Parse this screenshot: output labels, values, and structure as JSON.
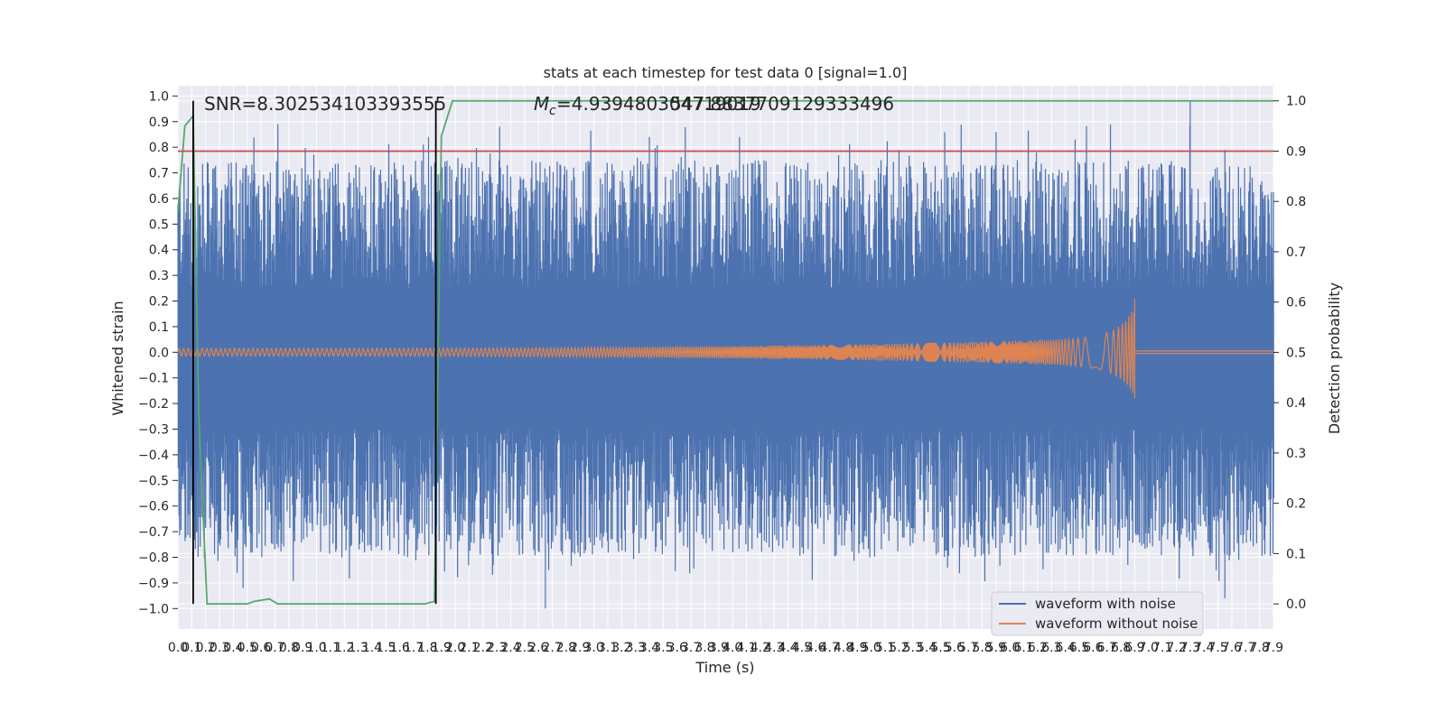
{
  "chart_data": {
    "type": "line",
    "title": "stats at each timestep for test data 0 [signal=1.0]",
    "xlabel": "Time (s)",
    "ylabel_left": "Whitened strain",
    "ylabel_right": "Detection probability",
    "xlim": [
      0.0,
      7.9
    ],
    "ylim_left": [
      -1.08,
      1.04
    ],
    "ylim_right": [
      -0.05,
      1.03
    ],
    "x_ticks": [
      "0.0",
      "0.1",
      "0.2",
      "0.3",
      "0.4",
      "0.5",
      "0.6",
      "0.7",
      "0.8",
      "0.9",
      "1.0",
      "1.1",
      "1.2",
      "1.3",
      "1.4",
      "1.5",
      "1.6",
      "1.7",
      "1.8",
      "1.9",
      "2.0",
      "2.1",
      "2.2",
      "2.3",
      "2.4",
      "2.5",
      "2.6",
      "2.7",
      "2.8",
      "2.9",
      "3.0",
      "3.1",
      "3.2",
      "3.3",
      "3.4",
      "3.5",
      "3.6",
      "3.7",
      "3.8",
      "3.9",
      "4.0",
      "4.1",
      "4.2",
      "4.3",
      "4.4",
      "4.5",
      "4.6",
      "4.7",
      "4.8",
      "4.9",
      "5.0",
      "5.1",
      "5.2",
      "5.3",
      "5.4",
      "5.5",
      "5.6",
      "5.7",
      "5.8",
      "5.9",
      "6.0",
      "6.1",
      "6.2",
      "6.3",
      "6.4",
      "6.5",
      "6.6",
      "6.7",
      "6.8",
      "6.9",
      "7.0",
      "7.1",
      "7.2",
      "7.3",
      "7.4",
      "7.5",
      "7.6",
      "7.7",
      "7.8",
      "7.9"
    ],
    "y_ticks_left": [
      "1.0",
      "0.9",
      "0.8",
      "0.7",
      "0.6",
      "0.5",
      "0.4",
      "0.3",
      "0.2",
      "0.1",
      "0.0",
      "−0.1",
      "−0.2",
      "−0.3",
      "−0.4",
      "−0.5",
      "−0.6",
      "−0.7",
      "−0.8",
      "−0.9",
      "−1.0"
    ],
    "y_ticks_right": [
      "1.0",
      "0.9",
      "0.8",
      "0.7",
      "0.6",
      "0.5",
      "0.4",
      "0.3",
      "0.2",
      "0.1",
      "0.0"
    ],
    "annotations": {
      "snr": "SNR=8.302534103393555",
      "mc_prefix": "M",
      "mc_sub": "c",
      "mc_value": "=4.939480304719019",
      "mc_overlap": "547.8837709129333496"
    },
    "legend": {
      "placement": "lower right",
      "entries": [
        "waveform with noise",
        "waveform without noise"
      ]
    },
    "series": [
      {
        "name": "waveform with noise",
        "color": "#4c72b0",
        "description_values": {
          "typical_amplitude": 0.5,
          "peak_max": 0.98,
          "peak_min": -1.0
        }
      },
      {
        "name": "waveform without noise",
        "color": "#dd8452",
        "chirp": {
          "start": 0.0,
          "merger_time": 6.9,
          "start_amplitude": 0.015,
          "peak_amplitude_pos": 0.21,
          "peak_amplitude_neg": -0.18,
          "ringdown_amplitude": 0.005
        }
      },
      {
        "name": "detection probability",
        "color": "#55a868",
        "axis": "right",
        "x": [
          0.0,
          0.05,
          0.11,
          0.15,
          0.21,
          0.25,
          0.5,
          0.55,
          0.66,
          0.72,
          0.8,
          1.5,
          1.78,
          1.85,
          1.9,
          1.98,
          2.5,
          7.9
        ],
        "y": [
          0.78,
          0.95,
          0.97,
          0.38,
          0.0,
          0.0,
          0.0,
          0.005,
          0.01,
          0.0,
          0.0,
          0.0,
          0.0,
          0.005,
          0.93,
          1.0,
          1.0,
          1.0
        ]
      }
    ],
    "threshold": {
      "axis": "right",
      "value": 0.9,
      "color": "#c44e52"
    },
    "vertical_markers": {
      "x": [
        0.11,
        1.86
      ],
      "color": "#000000"
    },
    "background": "#eaeaf2",
    "grid": true
  }
}
